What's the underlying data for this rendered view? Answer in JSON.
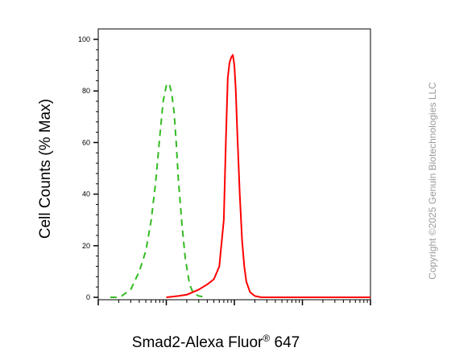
{
  "chart_data": {
    "type": "line",
    "title": "",
    "xlabel_main": "Smad2-Alexa Fluor",
    "xlabel_reg": "®",
    "xlabel_tail": " 647",
    "ylabel": "Cell Counts (% Max)",
    "ylim": [
      0,
      100
    ],
    "yticks": [
      "0",
      "20",
      "40",
      "60",
      "80",
      "100"
    ],
    "xscale": "log",
    "xlim": [
      1,
      10000
    ],
    "grid": false,
    "series": [
      {
        "color": "#33bb22",
        "dash": "dashed",
        "x": [
          1.5,
          1.8,
          2.2,
          3,
          4,
          5,
          6,
          7,
          8,
          9,
          10,
          11,
          12,
          13,
          14,
          15,
          17,
          19,
          22,
          25,
          30,
          40
        ],
        "y": [
          0,
          0,
          0.5,
          3,
          10,
          18,
          30,
          45,
          62,
          76,
          82,
          83,
          79,
          72,
          60,
          46,
          28,
          15,
          5,
          1.5,
          0.5,
          0
        ]
      },
      {
        "color": "#ff0000",
        "dash": "solid",
        "x": [
          10,
          15,
          20,
          30,
          40,
          50,
          60,
          70,
          75,
          80,
          85,
          90,
          95,
          100,
          105,
          110,
          120,
          130,
          140,
          150,
          170,
          200,
          250,
          300,
          10000
        ],
        "y": [
          0,
          0.5,
          1,
          3,
          5,
          7,
          12,
          30,
          60,
          85,
          91,
          93,
          94,
          90,
          80,
          65,
          40,
          22,
          12,
          6,
          2,
          0.5,
          0,
          0,
          0
        ]
      }
    ]
  },
  "watermark": "Copyright ©2025 Genuin Biotechnologies LLC"
}
